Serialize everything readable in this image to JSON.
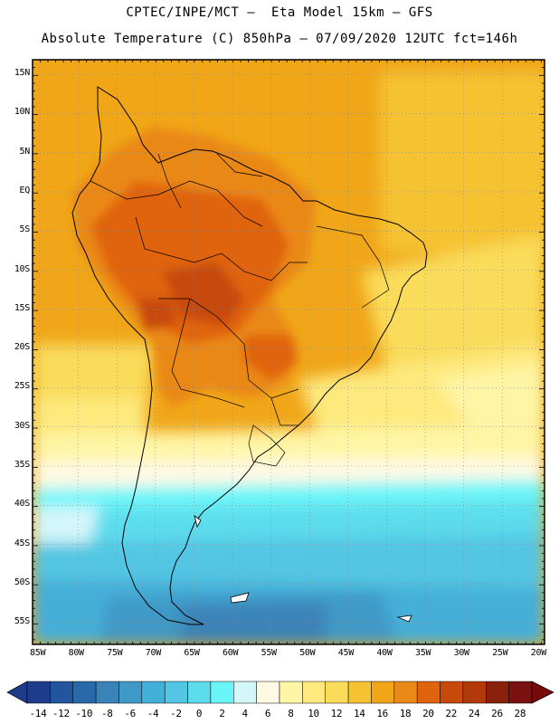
{
  "header": {
    "line1": "CPTEC/INPE/MCT –  Eta Model 15km – GFS",
    "line2": "Absolute Temperature (C) 850hPa – 07/09/2020 12UTC fct=146h"
  },
  "axes": {
    "lat_labels": [
      "15N",
      "10N",
      "5N",
      "EQ",
      "5S",
      "10S",
      "15S",
      "20S",
      "25S",
      "30S",
      "35S",
      "40S",
      "45S",
      "50S",
      "55S"
    ],
    "lon_labels": [
      "85W",
      "80W",
      "75W",
      "70W",
      "65W",
      "60W",
      "55W",
      "50W",
      "45W",
      "40W",
      "35W",
      "30W",
      "25W",
      "20W"
    ]
  },
  "colorbar": {
    "labels": [
      "-14",
      "-12",
      "-10",
      "-8",
      "-6",
      "-4",
      "-2",
      "0",
      "2",
      "4",
      "6",
      "8",
      "10",
      "12",
      "14",
      "16",
      "18",
      "20",
      "22",
      "24",
      "26",
      "28"
    ],
    "colors": [
      "#1e3c8c",
      "#23559e",
      "#2869aa",
      "#3a83b8",
      "#3f99c6",
      "#44afd8",
      "#52c6e3",
      "#5ddcec",
      "#6af5f9",
      "#d3f6fb",
      "#fff9e3",
      "#fff5a5",
      "#fde97d",
      "#fadb5a",
      "#f5c232",
      "#f0a618",
      "#ea8818",
      "#e06410",
      "#c84a0a",
      "#b23a08",
      "#8a200c",
      "#7a1010"
    ],
    "under_color": "#1e3c8c",
    "over_color": "#7a0a0a"
  }
}
